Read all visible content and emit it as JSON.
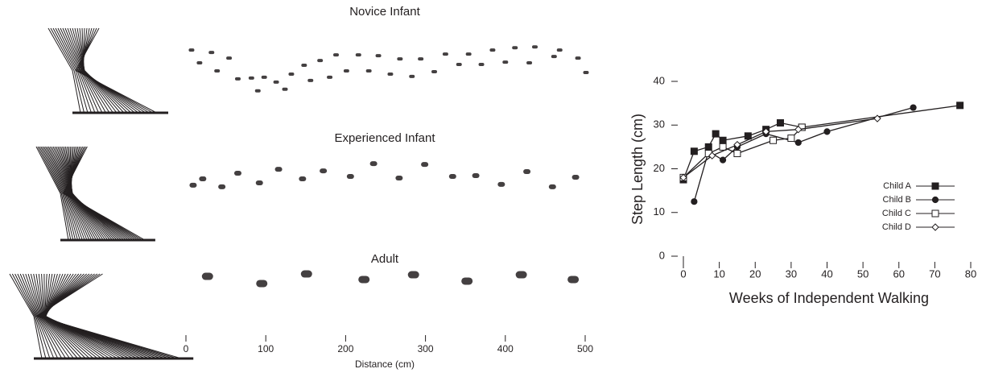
{
  "chart_data": [
    {
      "type": "footprints",
      "panels": [
        {
          "title": "Novice Infant",
          "x": [
            7,
            32,
            54,
            17,
            39,
            65,
            82,
            98,
            90,
            113,
            124,
            132,
            148,
            156,
            168,
            180,
            188,
            201,
            216,
            229,
            241,
            256,
            268,
            283,
            294,
            311,
            325,
            342,
            354,
            370,
            384,
            400,
            412,
            430,
            437,
            461,
            468,
            491,
            501
          ],
          "y": [
            23,
            20,
            13,
            7,
            -3,
            -13,
            -12,
            -11,
            -28,
            -17,
            -26,
            -7,
            4,
            -15,
            10,
            -11,
            17,
            -3,
            17,
            -3,
            16,
            -7,
            12,
            -10,
            12,
            -4,
            18,
            5,
            18,
            5,
            23,
            8,
            26,
            7,
            27,
            15,
            23,
            13,
            -5
          ]
        },
        {
          "title": "Experienced Infant",
          "x": [
            9,
            21,
            45,
            65,
            92,
            116,
            146,
            172,
            206,
            235,
            267,
            299,
            334,
            363,
            395,
            427,
            459,
            488
          ],
          "y": [
            -10,
            -2,
            -12,
            5,
            -7,
            10,
            -2,
            8,
            1,
            17,
            -1,
            16,
            1,
            2,
            -9,
            7,
            -12,
            0
          ]
        },
        {
          "title": "Adult",
          "x": [
            27,
            95,
            151,
            223,
            285,
            352,
            420,
            485
          ],
          "y": [
            3,
            -6,
            6,
            -1,
            5,
            -3,
            5,
            -1
          ]
        }
      ],
      "xlabel": "Distance (cm)",
      "xlim": [
        0,
        500
      ],
      "xticks": [
        0,
        100,
        200,
        300,
        400,
        500
      ],
      "color": "#231f20"
    },
    {
      "type": "line",
      "xlabel": "Weeks of Independent Walking",
      "ylabel": "Step Length (cm)",
      "xlim": [
        0,
        80
      ],
      "xticks": [
        0,
        10,
        20,
        30,
        40,
        50,
        60,
        70,
        80
      ],
      "ylim": [
        0,
        40
      ],
      "yticks": [
        0,
        10,
        20,
        30,
        40
      ],
      "legend": "right",
      "series": [
        {
          "name": "Child A",
          "color": "#231f20",
          "marker": "square",
          "filled": true,
          "x": [
            0,
            3,
            7,
            9,
            11,
            18,
            23,
            27,
            33,
            77
          ],
          "values": [
            17.5,
            24,
            25,
            28,
            26.5,
            27.5,
            29,
            30.5,
            29.5,
            34.5
          ]
        },
        {
          "name": "Child B",
          "color": "#231f20",
          "marker": "circle",
          "filled": true,
          "x": [
            3,
            7,
            11,
            15,
            23,
            32,
            40,
            64
          ],
          "values": [
            12.5,
            24,
            22,
            25,
            28,
            26,
            28.5,
            34
          ]
        },
        {
          "name": "Child C",
          "color": "#231f20",
          "marker": "square",
          "filled": false,
          "x": [
            0,
            7,
            11,
            15,
            25,
            30,
            33
          ],
          "values": [
            18,
            23.5,
            25,
            23.5,
            26.5,
            27,
            29.5
          ]
        },
        {
          "name": "Child D",
          "color": "#231f20",
          "marker": "diamond",
          "filled": false,
          "x": [
            0,
            8,
            15,
            23,
            32,
            54
          ],
          "values": [
            18,
            23,
            25.5,
            28.5,
            29,
            31.5
          ]
        }
      ]
    }
  ]
}
